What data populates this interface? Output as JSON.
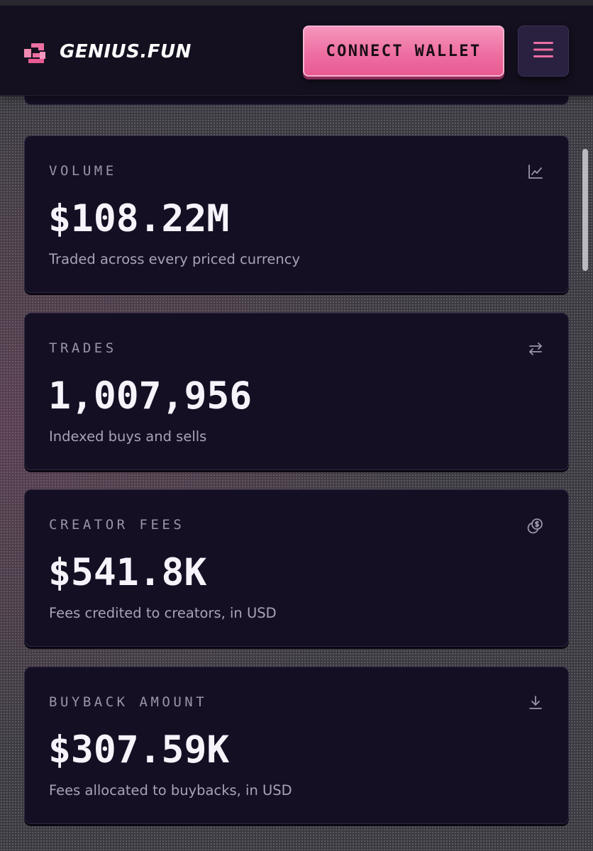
{
  "header": {
    "brand": "GENIUS.FUN",
    "connect_label": "CONNECT WALLET",
    "logo_icon": "genius-logo-icon",
    "menu_icon": "hamburger-menu-icon",
    "accent_color": "#ee6fa2"
  },
  "stats": [
    {
      "label": "VOLUME",
      "value": "$108.22M",
      "description": "Traded across every priced currency",
      "icon": "line-chart-icon"
    },
    {
      "label": "TRADES",
      "value": "1,007,956",
      "description": "Indexed buys and sells",
      "icon": "swap-arrows-icon"
    },
    {
      "label": "CREATOR FEES",
      "value": "$541.8K",
      "description": "Fees credited to creators, in USD",
      "icon": "coins-icon"
    },
    {
      "label": "BUYBACK AMOUNT",
      "value": "$307.59K",
      "description": "Fees allocated to buybacks, in USD",
      "icon": "download-icon"
    }
  ]
}
